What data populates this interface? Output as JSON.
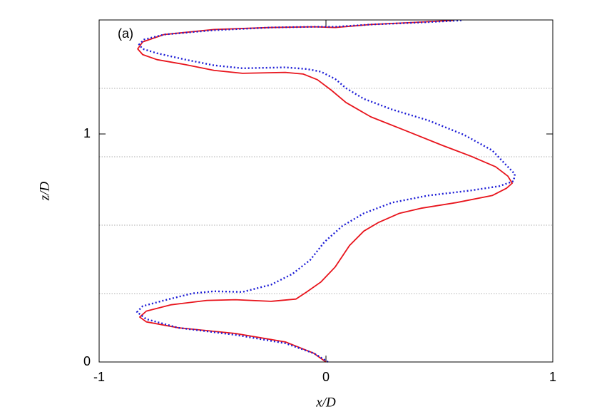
{
  "chart_data": {
    "type": "line",
    "annotation": "(a)",
    "xlabel": "x/D",
    "ylabel": "z/D",
    "xlim": [
      -1,
      1
    ],
    "xticks": [
      -1,
      0,
      1
    ],
    "ylim": [
      0,
      1.5
    ],
    "yticks": [
      0,
      1
    ],
    "hlines": [
      0.3,
      0.6,
      0.9,
      1.2
    ],
    "series": [
      {
        "color": "#e8141c",
        "style": "solid",
        "x": [
          0,
          -0.053,
          -0.179,
          -0.399,
          -0.651,
          -0.792,
          -0.821,
          -0.792,
          -0.682,
          -0.525,
          -0.399,
          -0.242,
          -0.132,
          -0.085,
          -0.022,
          0.041,
          0.104,
          0.167,
          0.23,
          0.324,
          0.418,
          0.575,
          0.733,
          0.796,
          0.821,
          0.802,
          0.748,
          0.638,
          0.513,
          0.355,
          0.198,
          0.088,
          0.025,
          -0.038,
          -0.101,
          -0.179,
          -0.368,
          -0.494,
          -0.619,
          -0.745,
          -0.808,
          -0.83,
          -0.808,
          -0.714,
          -0.494,
          -0.242,
          -0.053,
          0.041,
          0.198,
          0.387,
          0.56
        ],
        "values": [
          0,
          0.038,
          0.088,
          0.125,
          0.15,
          0.176,
          0.197,
          0.223,
          0.251,
          0.27,
          0.273,
          0.266,
          0.276,
          0.307,
          0.351,
          0.417,
          0.511,
          0.574,
          0.611,
          0.652,
          0.674,
          0.699,
          0.73,
          0.762,
          0.784,
          0.815,
          0.856,
          0.903,
          0.95,
          1.013,
          1.075,
          1.138,
          1.191,
          1.238,
          1.263,
          1.27,
          1.266,
          1.279,
          1.304,
          1.326,
          1.348,
          1.373,
          1.404,
          1.436,
          1.458,
          1.467,
          1.47,
          1.467,
          1.48,
          1.489,
          1.498
        ]
      },
      {
        "color": "#1c1cd6",
        "style": "dotted",
        "x": [
          0.009,
          -0.053,
          -0.179,
          -0.399,
          -0.651,
          -0.792,
          -0.833,
          -0.808,
          -0.714,
          -0.588,
          -0.494,
          -0.368,
          -0.242,
          -0.148,
          -0.069,
          -0.006,
          0.072,
          0.167,
          0.292,
          0.45,
          0.638,
          0.764,
          0.827,
          0.833,
          0.802,
          0.733,
          0.607,
          0.45,
          0.292,
          0.167,
          0.088,
          0.041,
          -0.022,
          -0.085,
          -0.179,
          -0.368,
          -0.494,
          -0.619,
          -0.745,
          -0.808,
          -0.824,
          -0.802,
          -0.714,
          -0.494,
          -0.242,
          -0.053,
          0.041,
          0.198,
          0.418,
          0.597
        ],
        "values": [
          0,
          0.038,
          0.082,
          0.119,
          0.15,
          0.188,
          0.219,
          0.245,
          0.27,
          0.301,
          0.31,
          0.307,
          0.339,
          0.386,
          0.448,
          0.527,
          0.596,
          0.652,
          0.699,
          0.73,
          0.752,
          0.771,
          0.793,
          0.824,
          0.856,
          0.928,
          0.997,
          1.06,
          1.107,
          1.154,
          1.201,
          1.241,
          1.273,
          1.285,
          1.292,
          1.288,
          1.301,
          1.326,
          1.354,
          1.373,
          1.392,
          1.414,
          1.436,
          1.455,
          1.467,
          1.47,
          1.47,
          1.48,
          1.489,
          1.498
        ]
      }
    ]
  }
}
